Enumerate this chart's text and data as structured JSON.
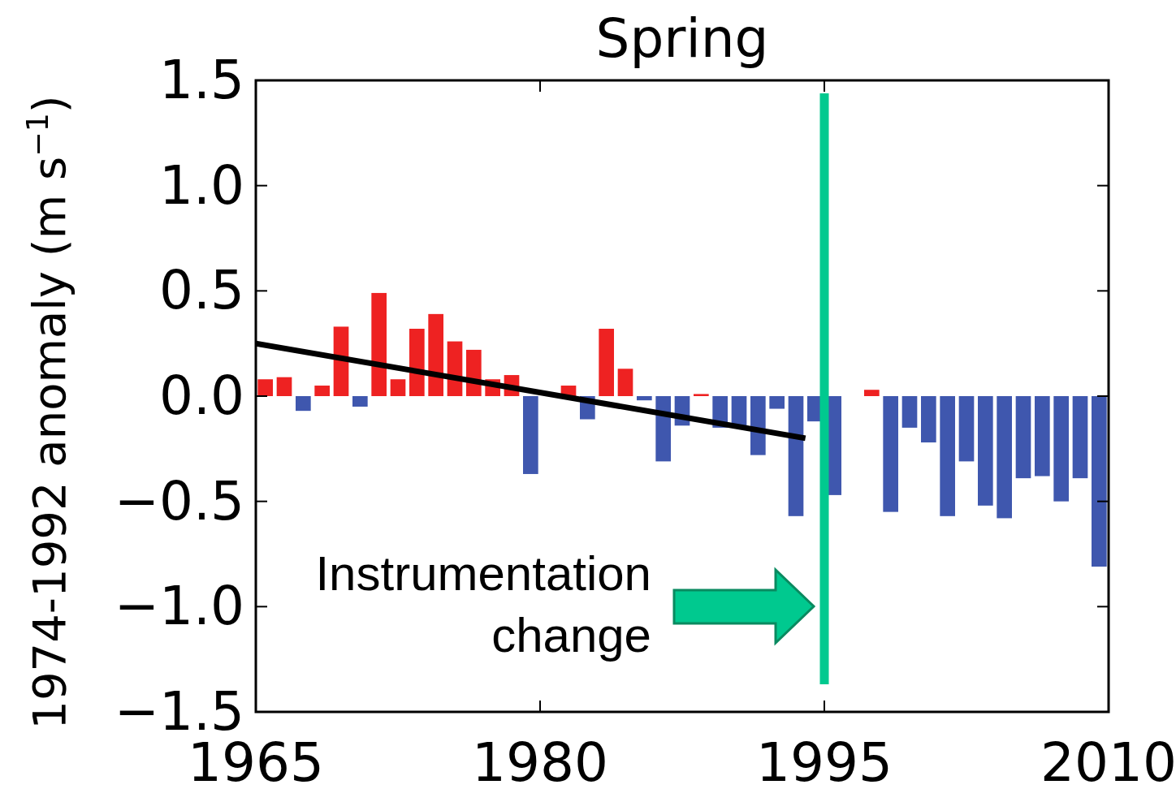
{
  "chart_data": {
    "type": "bar",
    "title": "Spring",
    "ylabel": "1974-1992 anomaly (m s$^{−1}$)",
    "x": [
      1965.5,
      1966.5,
      1967.5,
      1968.5,
      1969.5,
      1970.5,
      1971.5,
      1972.5,
      1973.5,
      1974.5,
      1975.5,
      1976.5,
      1977.5,
      1978.5,
      1979.5,
      1981.5,
      1982.5,
      1983.5,
      1984.5,
      1985.5,
      1986.5,
      1987.5,
      1988.5,
      1989.5,
      1990.5,
      1991.5,
      1992.5,
      1993.5,
      1994.5,
      1995.5,
      1997.5,
      1998.5,
      1999.5,
      2000.5,
      2001.5,
      2002.5,
      2003.5,
      2004.5,
      2005.5,
      2006.5,
      2007.5,
      2008.5,
      2009.5
    ],
    "series": [
      {
        "values": [
          0.08,
          0.09,
          -0.07,
          0.05,
          0.33,
          -0.05,
          0.49,
          0.08,
          0.32,
          0.39,
          0.26,
          0.22,
          0.08,
          0.1,
          -0.37,
          0.05,
          -0.11,
          0.32,
          0.13,
          -0.02,
          -0.31,
          -0.14,
          0.01,
          -0.15,
          -0.15,
          -0.28,
          -0.06,
          -0.57,
          -0.12,
          -0.47,
          0.03,
          -0.55,
          -0.15,
          -0.22,
          -0.57,
          -0.31,
          -0.52,
          -0.58,
          -0.39,
          -0.38,
          -0.5,
          -0.39,
          -0.81
        ],
        "colors": [
          "#ee2222",
          "#ee2222",
          "#3f57ae",
          "#ee2222",
          "#ee2222",
          "#3f57ae",
          "#ee2222",
          "#ee2222",
          "#ee2222",
          "#ee2222",
          "#ee2222",
          "#ee2222",
          "#ee2222",
          "#ee2222",
          "#3f57ae",
          "#ee2222",
          "#3f57ae",
          "#ee2222",
          "#ee2222",
          "#3f57ae",
          "#3f57ae",
          "#3f57ae",
          "#ee2222",
          "#3f57ae",
          "#3f57ae",
          "#3f57ae",
          "#3f57ae",
          "#3f57ae",
          "#3f57ae",
          "#3f57ae",
          "#ee2222",
          "#3f57ae",
          "#3f57ae",
          "#3f57ae",
          "#3f57ae",
          "#3f57ae",
          "#3f57ae",
          "#3f57ae",
          "#3f57ae",
          "#3f57ae",
          "#3f57ae",
          "#3f57ae",
          "#3f57ae"
        ]
      },
      {
        "type": "line",
        "color": "#000000",
        "x": [
          1965,
          1994
        ],
        "values": [
          0.25,
          -0.2
        ]
      }
    ],
    "xlim": [
      1965,
      2010
    ],
    "xticks": [
      1965,
      1980,
      1995,
      2010
    ],
    "ylim": [
      -1.5,
      1.5
    ],
    "yticks": [
      {
        "value": -1.5,
        "label": "−1.5"
      },
      {
        "value": -1,
        "label": "−1.0"
      },
      {
        "value": -0.5,
        "label": "−0.5"
      },
      {
        "value": 0,
        "label": "0.0"
      },
      {
        "value": 0.5,
        "label": "0.5"
      },
      {
        "value": 1,
        "label": "1.0"
      },
      {
        "value": 1.5,
        "label": "1.5"
      }
    ],
    "ref_lines": [
      {
        "axis": "x",
        "value": 1995,
        "color": "#00c98f"
      }
    ],
    "annotations": [
      "Instrumentation change"
    ],
    "grid": false
  }
}
